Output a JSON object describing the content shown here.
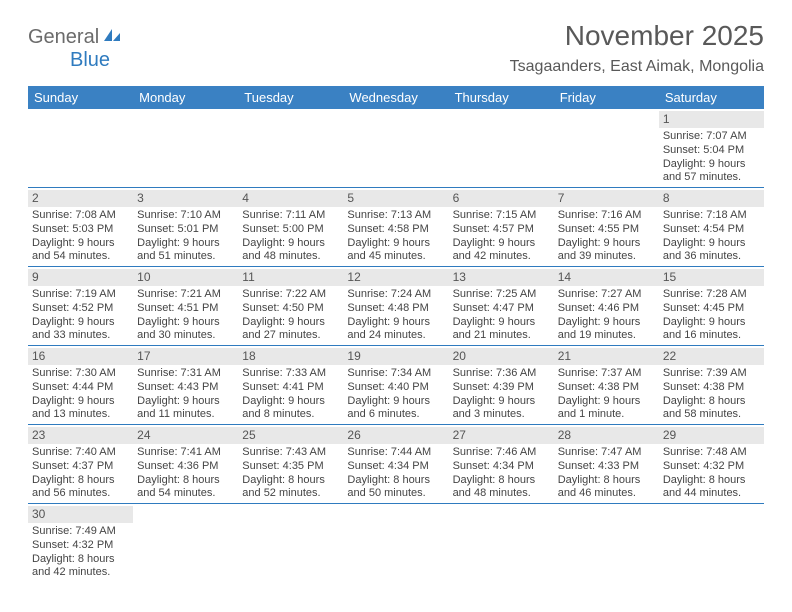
{
  "logo": {
    "text_gray": "General",
    "text_blue": "Blue"
  },
  "header": {
    "month_title": "November 2025",
    "location": "Tsagaanders, East Aimak, Mongolia"
  },
  "colors": {
    "header_bg": "#3a81c3",
    "header_text": "#ffffff",
    "row_divider": "#2f7bbf",
    "daynum_bg": "#e8e8e8",
    "text_gray": "#595959"
  },
  "day_headers": [
    "Sunday",
    "Monday",
    "Tuesday",
    "Wednesday",
    "Thursday",
    "Friday",
    "Saturday"
  ],
  "weeks": [
    [
      null,
      null,
      null,
      null,
      null,
      null,
      {
        "n": "1",
        "sr": "Sunrise: 7:07 AM",
        "ss": "Sunset: 5:04 PM",
        "d1": "Daylight: 9 hours",
        "d2": "and 57 minutes."
      }
    ],
    [
      {
        "n": "2",
        "sr": "Sunrise: 7:08 AM",
        "ss": "Sunset: 5:03 PM",
        "d1": "Daylight: 9 hours",
        "d2": "and 54 minutes."
      },
      {
        "n": "3",
        "sr": "Sunrise: 7:10 AM",
        "ss": "Sunset: 5:01 PM",
        "d1": "Daylight: 9 hours",
        "d2": "and 51 minutes."
      },
      {
        "n": "4",
        "sr": "Sunrise: 7:11 AM",
        "ss": "Sunset: 5:00 PM",
        "d1": "Daylight: 9 hours",
        "d2": "and 48 minutes."
      },
      {
        "n": "5",
        "sr": "Sunrise: 7:13 AM",
        "ss": "Sunset: 4:58 PM",
        "d1": "Daylight: 9 hours",
        "d2": "and 45 minutes."
      },
      {
        "n": "6",
        "sr": "Sunrise: 7:15 AM",
        "ss": "Sunset: 4:57 PM",
        "d1": "Daylight: 9 hours",
        "d2": "and 42 minutes."
      },
      {
        "n": "7",
        "sr": "Sunrise: 7:16 AM",
        "ss": "Sunset: 4:55 PM",
        "d1": "Daylight: 9 hours",
        "d2": "and 39 minutes."
      },
      {
        "n": "8",
        "sr": "Sunrise: 7:18 AM",
        "ss": "Sunset: 4:54 PM",
        "d1": "Daylight: 9 hours",
        "d2": "and 36 minutes."
      }
    ],
    [
      {
        "n": "9",
        "sr": "Sunrise: 7:19 AM",
        "ss": "Sunset: 4:52 PM",
        "d1": "Daylight: 9 hours",
        "d2": "and 33 minutes."
      },
      {
        "n": "10",
        "sr": "Sunrise: 7:21 AM",
        "ss": "Sunset: 4:51 PM",
        "d1": "Daylight: 9 hours",
        "d2": "and 30 minutes."
      },
      {
        "n": "11",
        "sr": "Sunrise: 7:22 AM",
        "ss": "Sunset: 4:50 PM",
        "d1": "Daylight: 9 hours",
        "d2": "and 27 minutes."
      },
      {
        "n": "12",
        "sr": "Sunrise: 7:24 AM",
        "ss": "Sunset: 4:48 PM",
        "d1": "Daylight: 9 hours",
        "d2": "and 24 minutes."
      },
      {
        "n": "13",
        "sr": "Sunrise: 7:25 AM",
        "ss": "Sunset: 4:47 PM",
        "d1": "Daylight: 9 hours",
        "d2": "and 21 minutes."
      },
      {
        "n": "14",
        "sr": "Sunrise: 7:27 AM",
        "ss": "Sunset: 4:46 PM",
        "d1": "Daylight: 9 hours",
        "d2": "and 19 minutes."
      },
      {
        "n": "15",
        "sr": "Sunrise: 7:28 AM",
        "ss": "Sunset: 4:45 PM",
        "d1": "Daylight: 9 hours",
        "d2": "and 16 minutes."
      }
    ],
    [
      {
        "n": "16",
        "sr": "Sunrise: 7:30 AM",
        "ss": "Sunset: 4:44 PM",
        "d1": "Daylight: 9 hours",
        "d2": "and 13 minutes."
      },
      {
        "n": "17",
        "sr": "Sunrise: 7:31 AM",
        "ss": "Sunset: 4:43 PM",
        "d1": "Daylight: 9 hours",
        "d2": "and 11 minutes."
      },
      {
        "n": "18",
        "sr": "Sunrise: 7:33 AM",
        "ss": "Sunset: 4:41 PM",
        "d1": "Daylight: 9 hours",
        "d2": "and 8 minutes."
      },
      {
        "n": "19",
        "sr": "Sunrise: 7:34 AM",
        "ss": "Sunset: 4:40 PM",
        "d1": "Daylight: 9 hours",
        "d2": "and 6 minutes."
      },
      {
        "n": "20",
        "sr": "Sunrise: 7:36 AM",
        "ss": "Sunset: 4:39 PM",
        "d1": "Daylight: 9 hours",
        "d2": "and 3 minutes."
      },
      {
        "n": "21",
        "sr": "Sunrise: 7:37 AM",
        "ss": "Sunset: 4:38 PM",
        "d1": "Daylight: 9 hours",
        "d2": "and 1 minute."
      },
      {
        "n": "22",
        "sr": "Sunrise: 7:39 AM",
        "ss": "Sunset: 4:38 PM",
        "d1": "Daylight: 8 hours",
        "d2": "and 58 minutes."
      }
    ],
    [
      {
        "n": "23",
        "sr": "Sunrise: 7:40 AM",
        "ss": "Sunset: 4:37 PM",
        "d1": "Daylight: 8 hours",
        "d2": "and 56 minutes."
      },
      {
        "n": "24",
        "sr": "Sunrise: 7:41 AM",
        "ss": "Sunset: 4:36 PM",
        "d1": "Daylight: 8 hours",
        "d2": "and 54 minutes."
      },
      {
        "n": "25",
        "sr": "Sunrise: 7:43 AM",
        "ss": "Sunset: 4:35 PM",
        "d1": "Daylight: 8 hours",
        "d2": "and 52 minutes."
      },
      {
        "n": "26",
        "sr": "Sunrise: 7:44 AM",
        "ss": "Sunset: 4:34 PM",
        "d1": "Daylight: 8 hours",
        "d2": "and 50 minutes."
      },
      {
        "n": "27",
        "sr": "Sunrise: 7:46 AM",
        "ss": "Sunset: 4:34 PM",
        "d1": "Daylight: 8 hours",
        "d2": "and 48 minutes."
      },
      {
        "n": "28",
        "sr": "Sunrise: 7:47 AM",
        "ss": "Sunset: 4:33 PM",
        "d1": "Daylight: 8 hours",
        "d2": "and 46 minutes."
      },
      {
        "n": "29",
        "sr": "Sunrise: 7:48 AM",
        "ss": "Sunset: 4:32 PM",
        "d1": "Daylight: 8 hours",
        "d2": "and 44 minutes."
      }
    ],
    [
      {
        "n": "30",
        "sr": "Sunrise: 7:49 AM",
        "ss": "Sunset: 4:32 PM",
        "d1": "Daylight: 8 hours",
        "d2": "and 42 minutes."
      },
      null,
      null,
      null,
      null,
      null,
      null
    ]
  ]
}
